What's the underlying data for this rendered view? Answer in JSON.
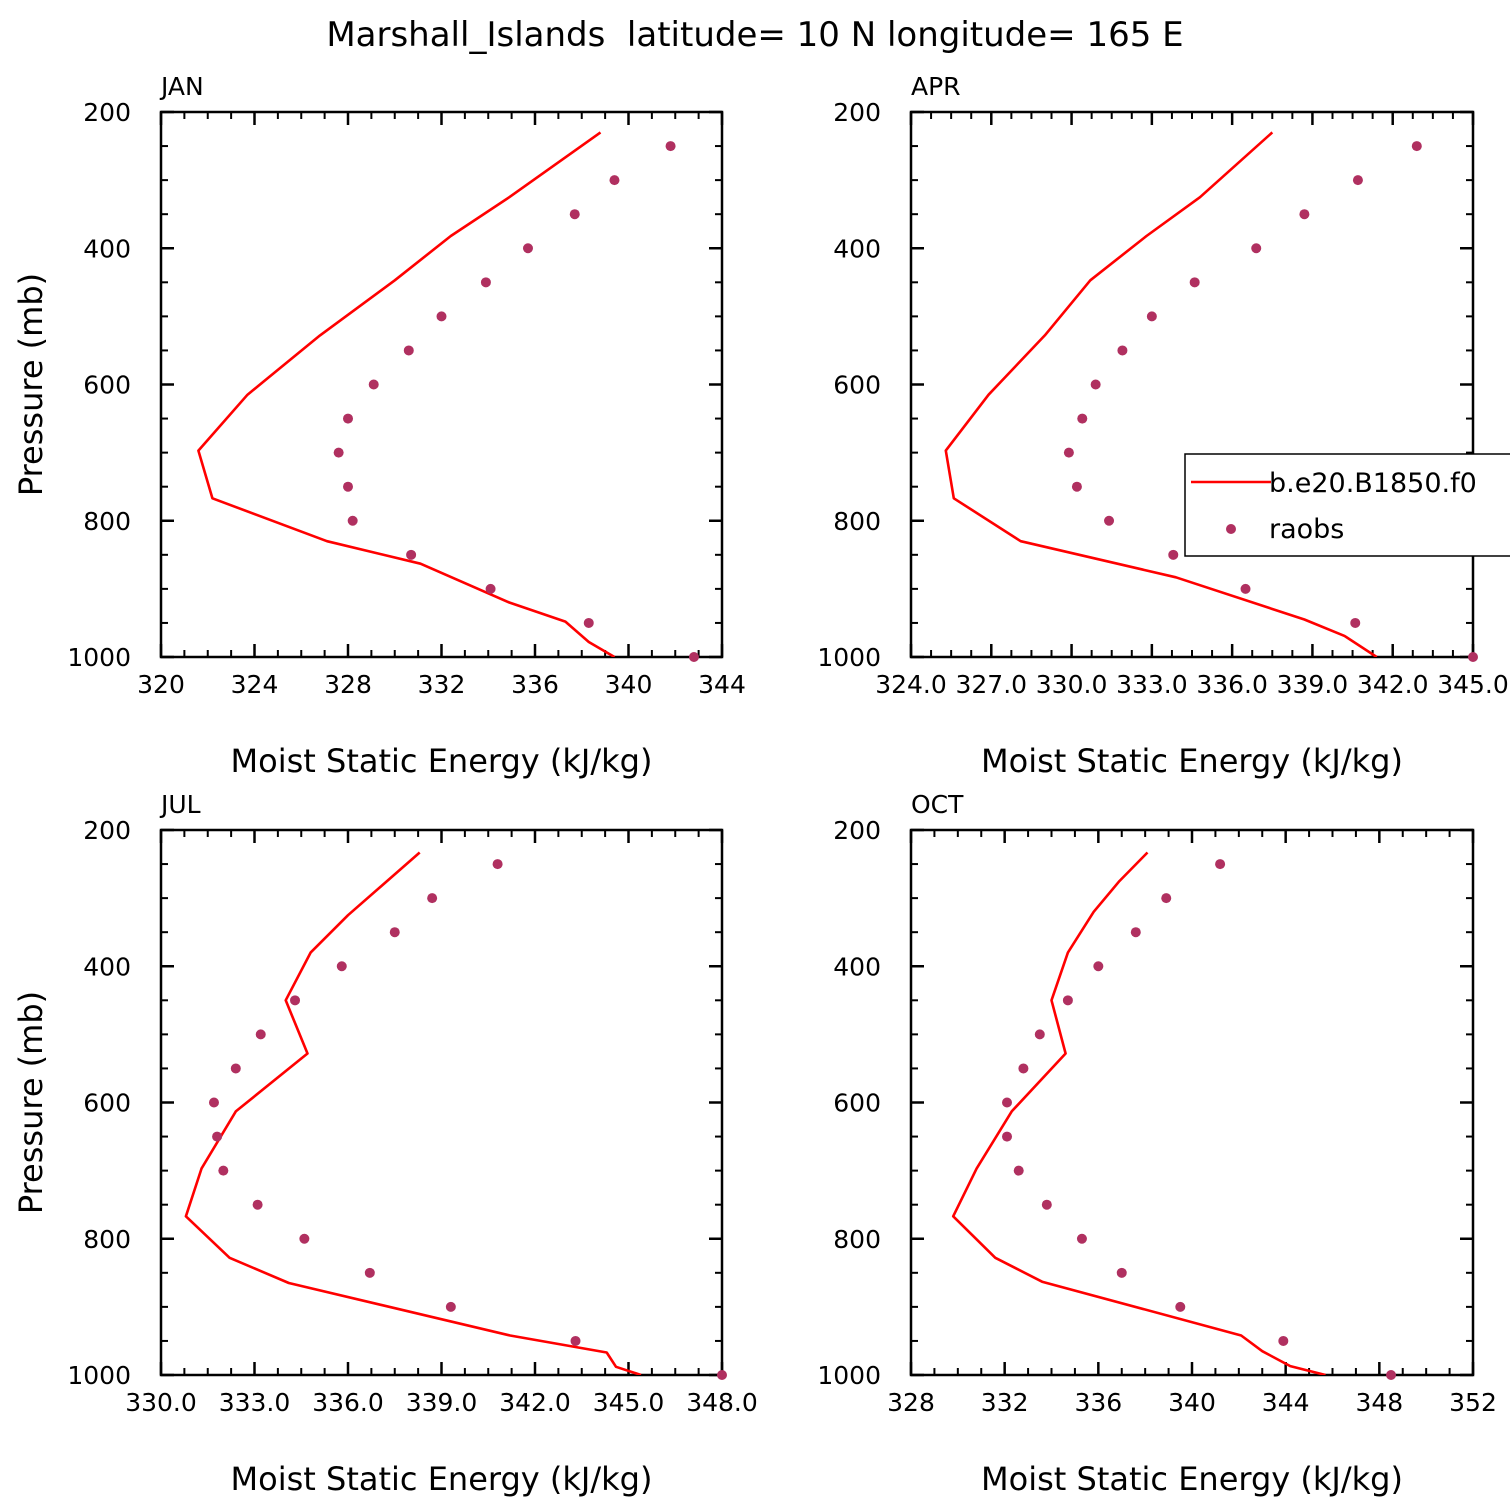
{
  "title": "Marshall_Islands  latitude= 10 N longitude= 165 E",
  "colors": {
    "model": "#ff0000",
    "obs": "#b03060",
    "axis": "#000000"
  },
  "chart_data": [
    {
      "type": "line",
      "panel": "JAN",
      "xlabel": "Moist Static Energy (kJ/kg)",
      "ylabel": "Pressure (mb)",
      "xlim": [
        320,
        344
      ],
      "ylim": [
        1000,
        200
      ],
      "xticks": [
        320,
        324,
        328,
        332,
        336,
        340,
        344
      ],
      "xtick_labels": [
        "320",
        "324",
        "328",
        "332",
        "336",
        "340",
        "344"
      ],
      "yticks": [
        200,
        400,
        600,
        800,
        1000
      ],
      "ytick_labels": [
        "200",
        "400",
        "600",
        "800",
        "1000"
      ],
      "series": [
        {
          "name": "b.e20.B1850.f0",
          "kind": "line",
          "x": [
            338.8,
            334.9,
            332.4,
            330.0,
            326.8,
            323.7,
            321.6,
            322.2,
            327.1,
            331.1,
            334.9,
            337.3,
            338.3,
            339.4
          ],
          "y": [
            230,
            325,
            382,
            447,
            528,
            615,
            697,
            767,
            830,
            863,
            920,
            948,
            978,
            1000
          ]
        },
        {
          "name": "raobs",
          "kind": "scatter",
          "x": [
            341.8,
            339.4,
            337.7,
            335.7,
            333.9,
            332.0,
            330.6,
            329.1,
            328.0,
            327.6,
            328.0,
            328.2,
            330.7,
            334.1,
            338.3,
            342.8
          ],
          "y": [
            250,
            300,
            350,
            400,
            450,
            500,
            550,
            600,
            650,
            700,
            750,
            800,
            850,
            900,
            950,
            1000
          ]
        }
      ]
    },
    {
      "type": "line",
      "panel": "APR",
      "xlabel": "Moist Static Energy (kJ/kg)",
      "ylabel": "",
      "xlim": [
        324,
        345
      ],
      "ylim": [
        1000,
        200
      ],
      "xticks": [
        324,
        327,
        330,
        333,
        336,
        339,
        342,
        345
      ],
      "xtick_labels": [
        "324.0",
        "327.0",
        "330.0",
        "333.0",
        "336.0",
        "339.0",
        "342.0",
        "345.0"
      ],
      "yticks": [
        200,
        400,
        600,
        800,
        1000
      ],
      "ytick_labels": [
        "200",
        "400",
        "600",
        "800",
        "1000"
      ],
      "legend": {
        "position": "right-middle",
        "entries": [
          "b.e20.B1850.f0",
          "raobs"
        ]
      },
      "series": [
        {
          "name": "b.e20.B1850.f0",
          "kind": "line",
          "x": [
            337.5,
            334.8,
            332.8,
            330.7,
            329.0,
            326.9,
            325.3,
            325.6,
            328.1,
            333.9,
            338.7,
            340.2,
            341.4
          ],
          "y": [
            230,
            325,
            382,
            447,
            528,
            615,
            697,
            767,
            830,
            883,
            945,
            969,
            1000
          ]
        },
        {
          "name": "raobs",
          "kind": "scatter",
          "x": [
            342.9,
            340.7,
            338.7,
            336.9,
            334.6,
            333.0,
            331.9,
            330.9,
            330.4,
            329.9,
            330.2,
            331.4,
            333.8,
            336.5,
            340.6,
            345.0
          ],
          "y": [
            250,
            300,
            350,
            400,
            450,
            500,
            550,
            600,
            650,
            700,
            750,
            800,
            850,
            900,
            950,
            1000
          ]
        }
      ]
    },
    {
      "type": "line",
      "panel": "JUL",
      "xlabel": "Moist Static Energy (kJ/kg)",
      "ylabel": "Pressure (mb)",
      "xlim": [
        330,
        348
      ],
      "ylim": [
        1000,
        200
      ],
      "xticks": [
        330,
        333,
        336,
        339,
        342,
        345,
        348
      ],
      "xtick_labels": [
        "330.0",
        "333.0",
        "336.0",
        "339.0",
        "342.0",
        "345.0",
        "348.0"
      ],
      "yticks": [
        200,
        400,
        600,
        800,
        1000
      ],
      "ytick_labels": [
        "200",
        "400",
        "600",
        "800",
        "1000"
      ],
      "series": [
        {
          "name": "b.e20.B1850.f0",
          "kind": "line",
          "x": [
            338.3,
            336.0,
            334.8,
            334.0,
            334.7,
            332.4,
            331.3,
            330.8,
            332.2,
            334.1,
            341.2,
            344.3,
            344.6,
            345.4
          ],
          "y": [
            233,
            325,
            380,
            450,
            528,
            613,
            697,
            767,
            828,
            865,
            942,
            967,
            988,
            1000
          ]
        },
        {
          "name": "raobs",
          "kind": "scatter",
          "x": [
            340.8,
            338.7,
            337.5,
            335.8,
            334.3,
            333.2,
            332.4,
            331.7,
            331.8,
            332.0,
            333.1,
            334.6,
            336.7,
            339.3,
            343.3,
            348.0
          ],
          "y": [
            250,
            300,
            350,
            400,
            450,
            500,
            550,
            600,
            650,
            700,
            750,
            800,
            850,
            900,
            950,
            1000
          ]
        }
      ]
    },
    {
      "type": "line",
      "panel": "OCT",
      "xlabel": "Moist Static Energy (kJ/kg)",
      "ylabel": "",
      "xlim": [
        328,
        352
      ],
      "ylim": [
        1000,
        200
      ],
      "xticks": [
        328,
        332,
        336,
        340,
        344,
        348,
        352
      ],
      "xtick_labels": [
        "328",
        "332",
        "336",
        "340",
        "344",
        "348",
        "352"
      ],
      "yticks": [
        200,
        400,
        600,
        800,
        1000
      ],
      "ytick_labels": [
        "200",
        "400",
        "600",
        "800",
        "1000"
      ],
      "series": [
        {
          "name": "b.e20.B1850.f0",
          "kind": "line",
          "x": [
            338.1,
            336.9,
            335.8,
            334.7,
            334.0,
            334.6,
            332.3,
            330.8,
            329.8,
            331.6,
            333.6,
            342.1,
            343.0,
            344.2,
            345.7
          ],
          "y": [
            233,
            275,
            320,
            380,
            450,
            528,
            613,
            697,
            767,
            828,
            863,
            942,
            965,
            987,
            1000
          ]
        },
        {
          "name": "raobs",
          "kind": "scatter",
          "x": [
            341.2,
            338.9,
            337.6,
            336.0,
            334.7,
            333.5,
            332.8,
            332.1,
            332.1,
            332.6,
            333.8,
            335.3,
            337.0,
            339.5,
            343.9,
            348.5
          ],
          "y": [
            250,
            300,
            350,
            400,
            450,
            500,
            550,
            600,
            650,
            700,
            750,
            800,
            850,
            900,
            950,
            1000
          ]
        }
      ]
    }
  ]
}
